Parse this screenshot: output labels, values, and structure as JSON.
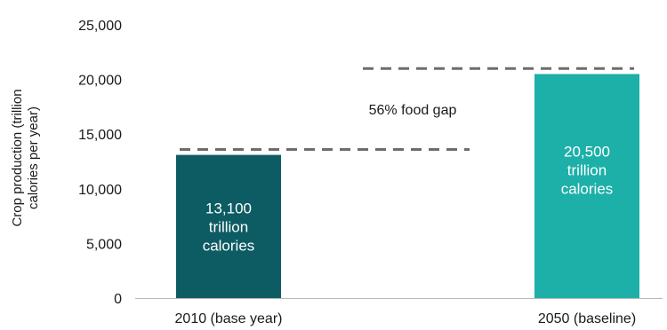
{
  "chart_data": {
    "type": "bar",
    "categories": [
      "2010 (base year)",
      "2050 (baseline)"
    ],
    "values": [
      13100,
      20500
    ],
    "bar_colors": [
      "#0d5c63",
      "#1cb0a8"
    ],
    "bar_labels": [
      [
        "13,100",
        "trillion",
        "calories"
      ],
      [
        "20,500",
        "trillion",
        "calories"
      ]
    ],
    "ylabel_lines": [
      "Crop production (trillion",
      "calories per year)"
    ],
    "yticks": [
      0,
      5000,
      10000,
      15000,
      20000,
      25000
    ],
    "ytick_labels": [
      "0",
      "5,000",
      "10,000",
      "15,000",
      "20,000",
      "25,000"
    ],
    "ylim": [
      0,
      25000
    ],
    "grid": false,
    "gap_lines": [
      {
        "y": 13600,
        "from_category": 0,
        "to": "mid"
      },
      {
        "y": 21000,
        "from_category": "mid",
        "to": 1
      }
    ],
    "gap_line_color": "#6d6d6d",
    "annotation": "56% food gap"
  }
}
